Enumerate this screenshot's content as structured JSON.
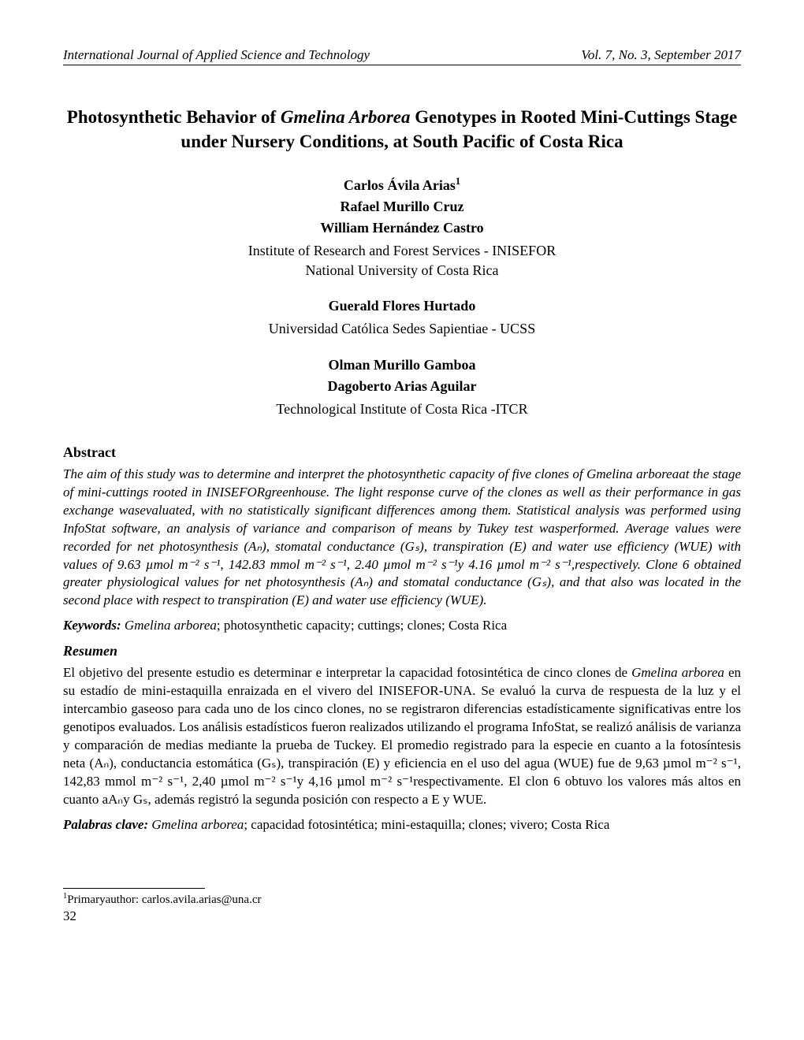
{
  "header": {
    "journal": "International Journal of Applied Science and Technology",
    "issue": "Vol. 7, No. 3, September 2017"
  },
  "title": {
    "pre": "Photosynthetic Behavior of ",
    "italic": "Gmelina Arborea",
    "post": " Genotypes in Rooted Mini-Cuttings Stage under Nursery Conditions, at South Pacific of Costa Rica"
  },
  "authors": {
    "block1": {
      "name1": "Carlos Ávila Arias",
      "sup1": "1",
      "name2": "Rafael Murillo Cruz",
      "name3": "William Hernández Castro",
      "aff1": "Institute of Research and Forest Services - INISEFOR",
      "aff2": "National University of Costa Rica"
    },
    "block2": {
      "name": "Guerald Flores Hurtado",
      "aff": "Universidad Católica Sedes Sapientiae - UCSS"
    },
    "block3": {
      "name1": "Olman Murillo Gamboa",
      "name2": "Dagoberto Arias Aguilar",
      "aff": "Technological Institute of Costa Rica -ITCR"
    }
  },
  "abstract": {
    "heading": "Abstract",
    "text": "The aim of this study was to determine and interpret the photosynthetic capacity of five clones of Gmelina arboreaat the stage of mini-cuttings rooted in INISEFORgreenhouse. The light response curve of the clones as well as their performance in gas exchange wasevaluated, with no statistically significant differences among them. Statistical analysis was performed using InfoStat software, an analysis of variance and comparison of means by Tukey test wasperformed. Average values were recorded for net photosynthesis (Aₙ), stomatal conductance (Gₛ), transpiration (E) and water use efficiency (WUE) with values of 9.63 µmol m⁻² s⁻¹, 142.83 mmol m⁻² s⁻¹, 2.40 µmol m⁻² s⁻¹y 4.16 µmol m⁻² s⁻¹,respectively. Clone 6 obtained greater physiological values for net photosynthesis (Aₙ) and stomatal conductance (Gₛ), and that also was located in the second place with respect to transpiration (E) and water use efficiency (WUE).",
    "keywords_label": "Keywords:",
    "keywords_first": " Gmelina arborea",
    "keywords_rest": "; photosynthetic capacity; cuttings; clones; Costa Rica"
  },
  "resumen": {
    "heading": "Resumen",
    "pre": "El objetivo del presente estudio es determinar e interpretar la capacidad fotosintética de cinco clones de ",
    "italic": "Gmelina arborea",
    "post": " en su estadío de mini-estaquilla enraizada en el vivero del INISEFOR-UNA. Se evaluó la curva de respuesta de la luz y el intercambio gaseoso para cada uno de los cinco clones, no se registraron diferencias estadísticamente significativas entre los genotipos evaluados. Los análisis estadísticos fueron realizados utilizando el programa InfoStat, se realizó análisis de varianza y comparación de medias mediante la prueba de Tuckey. El promedio registrado para la especie en cuanto a la fotosíntesis neta (Aₙ), conductancia estomática (Gₛ), transpiración (E) y eficiencia en el uso del agua (WUE) fue de 9,63 µmol m⁻² s⁻¹, 142,83 mmol m⁻² s⁻¹, 2,40 µmol m⁻² s⁻¹y 4,16 µmol m⁻² s⁻¹respectivamente. El clon 6 obtuvo los valores más altos  en cuanto aAₙy Gₛ, además registró la segunda posición con respecto a E y WUE.",
    "palabras_label": "Palabras clave:",
    "palabras_first": " Gmelina arborea",
    "palabras_rest": "; capacidad fotosintética; mini-estaquilla; clones; vivero; Costa Rica"
  },
  "footnote": {
    "sup": "1",
    "text": "Primaryauthor: carlos.avila.arias@una.cr"
  },
  "page": "32"
}
